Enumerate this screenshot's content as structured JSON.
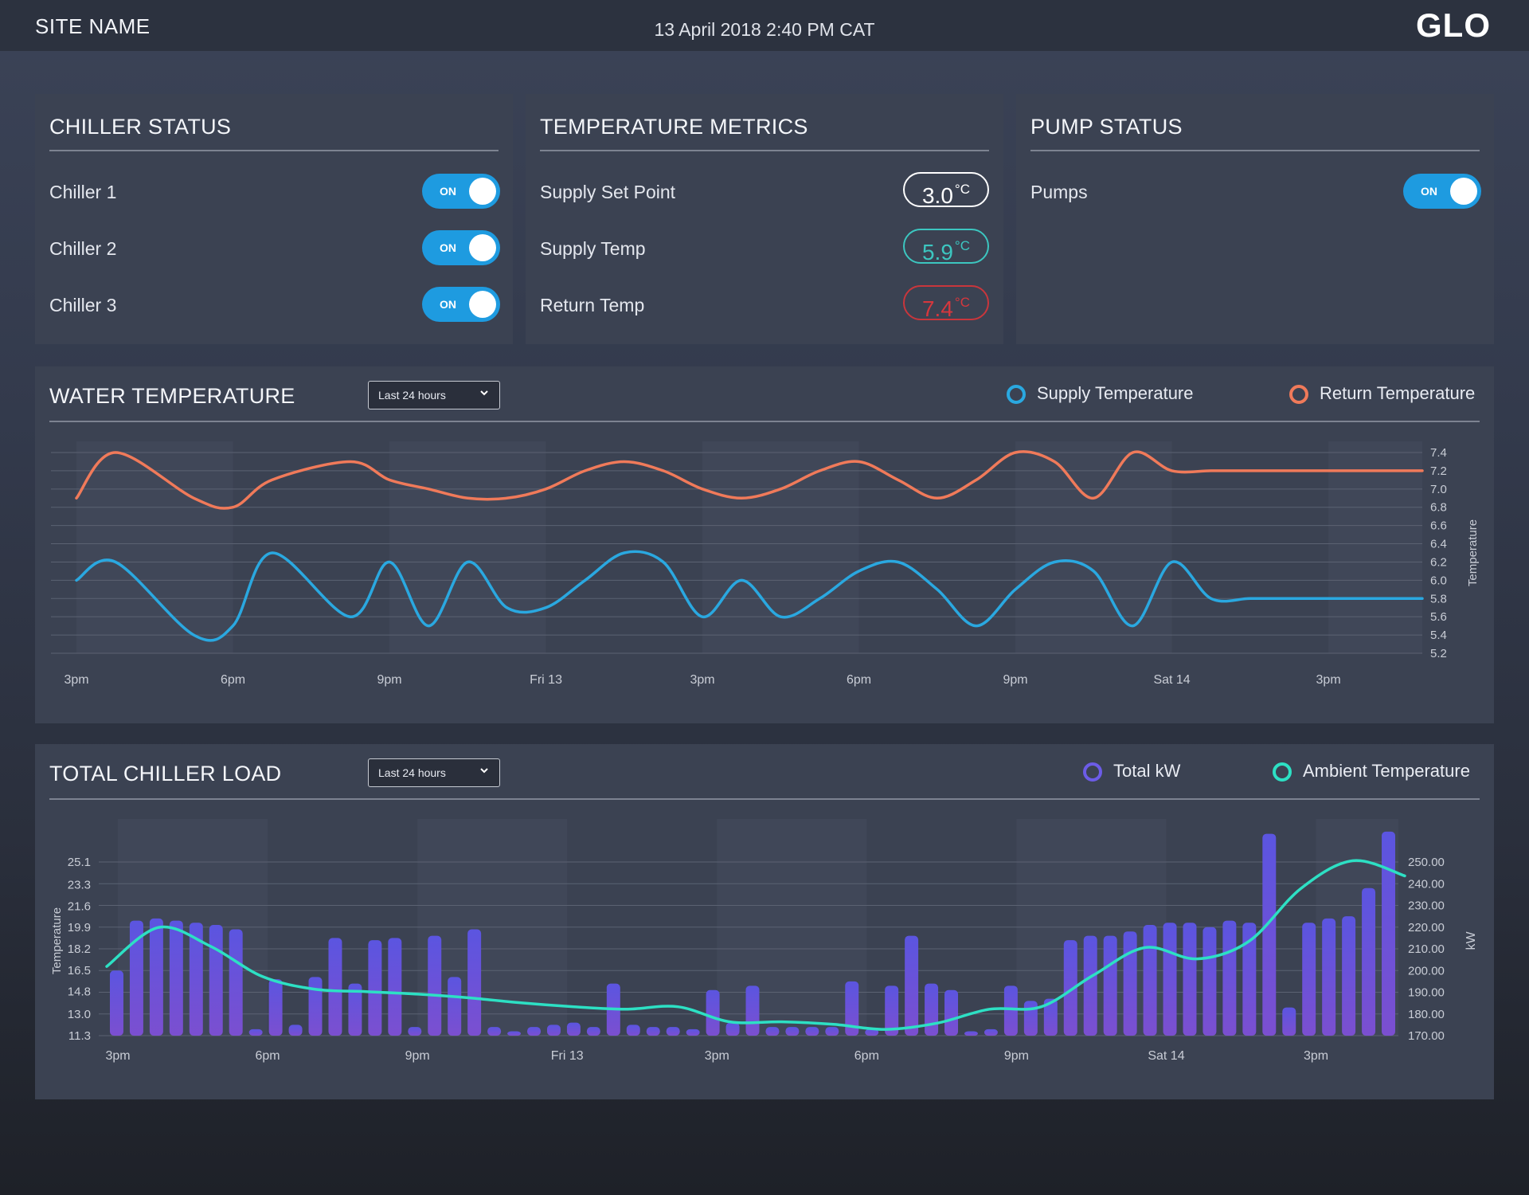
{
  "header": {
    "site_name": "SITE NAME",
    "datetime": "13 April 2018 2:40 PM CAT",
    "logo_text": "GLO"
  },
  "chiller_status": {
    "title": "CHILLER STATUS",
    "items": [
      {
        "label": "Chiller 1",
        "state": "ON"
      },
      {
        "label": "Chiller 2",
        "state": "ON"
      },
      {
        "label": "Chiller 3",
        "state": "ON"
      }
    ]
  },
  "temperature_metrics": {
    "title": "TEMPERATURE METRICS",
    "unit": "°C",
    "items": [
      {
        "label": "Supply Set Point",
        "value": "3.0",
        "color": "#ffffff"
      },
      {
        "label": "Supply Temp",
        "value": "5.9",
        "color": "#3cc6c0"
      },
      {
        "label": "Return Temp",
        "value": "7.4",
        "color": "#d6373d"
      }
    ]
  },
  "pump_status": {
    "title": "PUMP STATUS",
    "items": [
      {
        "label": "Pumps",
        "state": "ON"
      }
    ]
  },
  "water_temperature": {
    "title": "WATER TEMPERATURE",
    "range_select": "Last 24 hours",
    "legend": [
      {
        "label": "Supply Temperature",
        "color": "#2aa8e0"
      },
      {
        "label": "Return Temperature",
        "color": "#f07a5a"
      }
    ]
  },
  "total_chiller_load": {
    "title": "TOTAL CHILLER LOAD",
    "range_select": "Last 24 hours",
    "legend": [
      {
        "label": "Total kW",
        "color": "#6c5ce7"
      },
      {
        "label": "Ambient Temperature",
        "color": "#2de0c4"
      }
    ]
  },
  "chart_data": [
    {
      "type": "line",
      "title": "WATER TEMPERATURE",
      "x_ticks": [
        "3pm",
        "6pm",
        "9pm",
        "Fri 13",
        "3pm",
        "6pm",
        "9pm",
        "Sat 14",
        "3pm"
      ],
      "y_right_label": "Temperature",
      "y_ticks": [
        "7.4",
        "7.2",
        "7.0",
        "6.8",
        "6.6",
        "6.4",
        "6.2",
        "6.0",
        "5.8",
        "5.6",
        "5.4",
        "5.2"
      ],
      "ylim": [
        5.2,
        7.4
      ],
      "x": [
        0,
        0.25,
        0.75,
        1,
        1.25,
        1.75,
        2,
        2.25,
        2.5,
        2.75,
        3,
        3.25,
        3.5,
        3.75,
        4,
        4.25,
        4.5,
        4.75,
        5,
        5.25,
        5.5,
        5.75,
        6,
        6.25,
        6.5,
        6.75,
        7,
        7.25,
        7.5,
        7.75,
        8,
        8.25,
        8.5,
        8.6
      ],
      "series": [
        {
          "name": "Supply Temperature",
          "color": "#2aa8e0",
          "values": [
            6.0,
            6.2,
            5.4,
            5.5,
            6.3,
            5.6,
            6.2,
            5.5,
            6.2,
            5.7,
            5.7,
            6.0,
            6.3,
            6.2,
            5.6,
            6.0,
            5.6,
            5.8,
            6.1,
            6.2,
            5.9,
            5.5,
            5.9,
            6.2,
            6.1,
            5.5,
            6.2,
            5.8,
            5.8,
            5.8,
            5.8,
            5.8,
            5.8,
            5.8
          ]
        },
        {
          "name": "Return Temperature",
          "color": "#f07a5a",
          "values": [
            6.9,
            7.4,
            6.9,
            6.8,
            7.1,
            7.3,
            7.1,
            7.0,
            6.9,
            6.9,
            7.0,
            7.2,
            7.3,
            7.2,
            7.0,
            6.9,
            7.0,
            7.2,
            7.3,
            7.1,
            6.9,
            7.1,
            7.4,
            7.3,
            6.9,
            7.4,
            7.2,
            7.2,
            7.2,
            7.2,
            7.2,
            7.2,
            7.2,
            7.2
          ]
        }
      ]
    },
    {
      "type": "bar",
      "title": "TOTAL CHILLER LOAD",
      "x_ticks": [
        "3pm",
        "6pm",
        "9pm",
        "Fri 13",
        "3pm",
        "6pm",
        "9pm",
        "Sat 14",
        "3pm"
      ],
      "y_left_label": "Temperature",
      "y_left_ticks": [
        "25.1",
        "23.3",
        "21.6",
        "19.9",
        "18.2",
        "16.5",
        "14.8",
        "13.0",
        "11.3"
      ],
      "y_left_lim": [
        11.3,
        25.1
      ],
      "y_right_label": "kW",
      "y_right_ticks": [
        "250.00",
        "240.00",
        "230.00",
        "220.00",
        "210.00",
        "200.00",
        "190.00",
        "180.00",
        "170.00"
      ],
      "y_right_lim": [
        170,
        250
      ],
      "bars_kW": [
        200,
        223,
        224,
        223,
        222,
        221,
        219,
        173,
        196,
        175,
        197,
        215,
        194,
        214,
        215,
        174,
        216,
        197,
        219,
        174,
        172,
        174,
        175,
        176,
        174,
        194,
        175,
        174,
        174,
        173,
        191,
        176,
        193,
        174,
        174,
        174,
        174,
        195,
        173,
        193,
        216,
        194,
        191,
        172,
        173,
        193,
        186,
        187,
        214,
        216,
        216,
        218,
        221,
        222,
        222,
        220,
        223,
        222,
        263,
        183,
        222,
        224,
        225,
        238,
        264
      ],
      "ambient_temperature": [
        16.8,
        19.9,
        18.4,
        16.0,
        15.0,
        14.8,
        14.6,
        14.3,
        13.9,
        13.6,
        13.4,
        13.6,
        12.4,
        12.4,
        12.2,
        11.8,
        12.3,
        13.4,
        13.6,
        16.1,
        18.3,
        17.4,
        18.8,
        23.0,
        25.2,
        24.0
      ]
    }
  ]
}
